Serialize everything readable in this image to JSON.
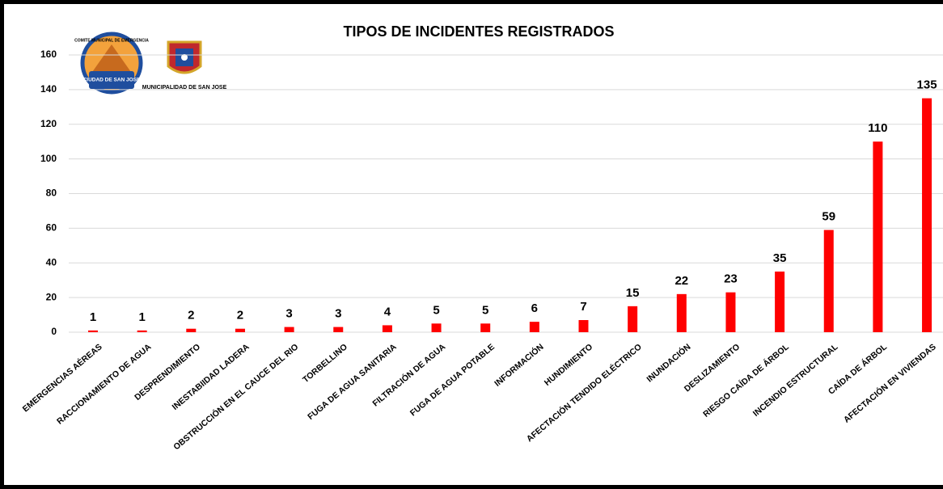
{
  "chart_data": {
    "type": "bar",
    "title": "TIPOS DE INCIDENTES REGISTRADOS",
    "logos": [
      "COMITE MUNICIPAL DE EMERGENCIA",
      "CIUDAD DE SAN JOSE",
      "MUNICIPALIDAD DE SAN JOSE"
    ],
    "categories": [
      "EMERGENCIAS AÉREAS",
      "RACCIONAMIENTO DE AGUA",
      "DESPRENDIMIENTO",
      "INESTABIIDAD LADERA",
      "OBSTRUCCIÓN EN EL CAUCE DEL RIO",
      "TORBELLINO",
      "FUGA DE AGUA SANITARIA",
      "FILTRACIÓN DE AGUA",
      "FUGA DE AGUA POTABLE",
      "INFORMACIÓN",
      "HUNDIMIENTO",
      "AFECTACIÓN TENDIDO ELÉCTRICO",
      "INUNDACIÓN",
      "DESLIZAMIENTO",
      "RIESGO CAÍDA DE ÁRBOL",
      "INCENDIO ESTRUCTURAL",
      "CAÍDA DE ÁRBOL",
      "AFECTACIÓN EN VIVIENDAS"
    ],
    "values": [
      1,
      1,
      2,
      2,
      3,
      3,
      4,
      5,
      5,
      6,
      7,
      15,
      22,
      23,
      35,
      59,
      110,
      135
    ],
    "color": "#ff0000",
    "ylim": [
      0,
      160
    ],
    "yticks": [
      0,
      20,
      40,
      60,
      80,
      100,
      120,
      140,
      160
    ],
    "grid": true
  }
}
